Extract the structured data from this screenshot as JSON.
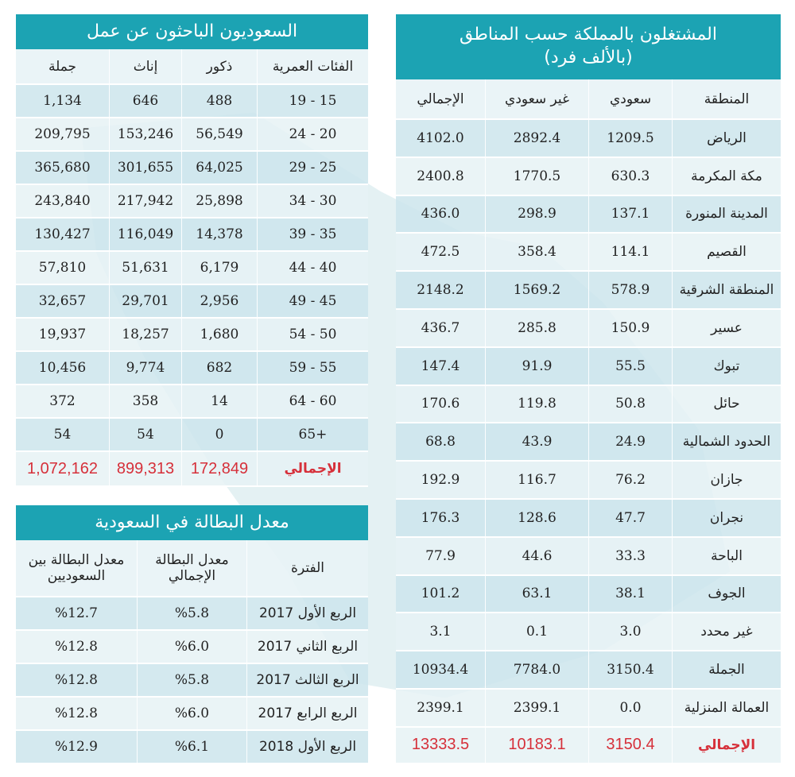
{
  "job_seekers": {
    "title": "السعوديون الباحثون عن عمل",
    "headers": [
      "الفئات العمرية",
      "ذكور",
      "إناث",
      "جملة"
    ],
    "rows": [
      [
        "19 - 15",
        "488",
        "646",
        "1,134"
      ],
      [
        "24 - 20",
        "56,549",
        "153,246",
        "209,795"
      ],
      [
        "29 - 25",
        "64,025",
        "301,655",
        "365,680"
      ],
      [
        "34 - 30",
        "25,898",
        "217,942",
        "243,840"
      ],
      [
        "39 - 35",
        "14,378",
        "116,049",
        "130,427"
      ],
      [
        "44 - 40",
        "6,179",
        "51,631",
        "57,810"
      ],
      [
        "49 - 45",
        "2,956",
        "29,701",
        "32,657"
      ],
      [
        "54 - 50",
        "1,680",
        "18,257",
        "19,937"
      ],
      [
        "59 - 55",
        "682",
        "9,774",
        "10,456"
      ],
      [
        "64 - 60",
        "14",
        "358",
        "372"
      ],
      [
        "65+",
        "0",
        "54",
        "54"
      ]
    ],
    "total": [
      "الإجمالي",
      "172,849",
      "899,313",
      "1,072,162"
    ]
  },
  "unemployment": {
    "title": "معدل البطالة في السعودية",
    "headers": [
      "الفترة",
      "معدل البطالة الإجمالي",
      "معدل البطالة بين السعوديين"
    ],
    "rows": [
      [
        "الربع الأول 2017",
        "%5.8",
        "%12.7"
      ],
      [
        "الربع الثاني 2017",
        "%6.0",
        "%12.8"
      ],
      [
        "الربع الثالث 2017",
        "%5.8",
        "%12.8"
      ],
      [
        "الربع الرابع 2017",
        "%6.0",
        "%12.8"
      ],
      [
        "الربع الأول 2018",
        "%6.1",
        "%12.9"
      ]
    ]
  },
  "employed": {
    "title": "المشتغلون بالمملكة حسب المناطق",
    "subtitle": "(بالألف فرد)",
    "headers": [
      "المنطقة",
      "سعودي",
      "غير سعودي",
      "الإجمالي"
    ],
    "rows": [
      [
        "الرياض",
        "1209.5",
        "2892.4",
        "4102.0"
      ],
      [
        "مكة المكرمة",
        "630.3",
        "1770.5",
        "2400.8"
      ],
      [
        "المدينة المنورة",
        "137.1",
        "298.9",
        "436.0"
      ],
      [
        "القصيم",
        "114.1",
        "358.4",
        "472.5"
      ],
      [
        "المنطقة الشرقية",
        "578.9",
        "1569.2",
        "2148.2"
      ],
      [
        "عسير",
        "150.9",
        "285.8",
        "436.7"
      ],
      [
        "تبوك",
        "55.5",
        "91.9",
        "147.4"
      ],
      [
        "حائل",
        "50.8",
        "119.8",
        "170.6"
      ],
      [
        "الحدود الشمالية",
        "24.9",
        "43.9",
        "68.8"
      ],
      [
        "جازان",
        "76.2",
        "116.7",
        "192.9"
      ],
      [
        "نجران",
        "47.7",
        "128.6",
        "176.3"
      ],
      [
        "الباحة",
        "33.3",
        "44.6",
        "77.9"
      ],
      [
        "الجوف",
        "38.1",
        "63.1",
        "101.2"
      ],
      [
        "غير محدد",
        "3.0",
        "0.1",
        "3.1"
      ],
      [
        "الجملة",
        "3150.4",
        "7784.0",
        "10934.4"
      ],
      [
        "العمالة المنزلية",
        "0.0",
        "2399.1",
        "2399.1"
      ]
    ],
    "total": [
      "الإجمالي",
      "3150.4",
      "10183.1",
      "13333.5"
    ]
  }
}
